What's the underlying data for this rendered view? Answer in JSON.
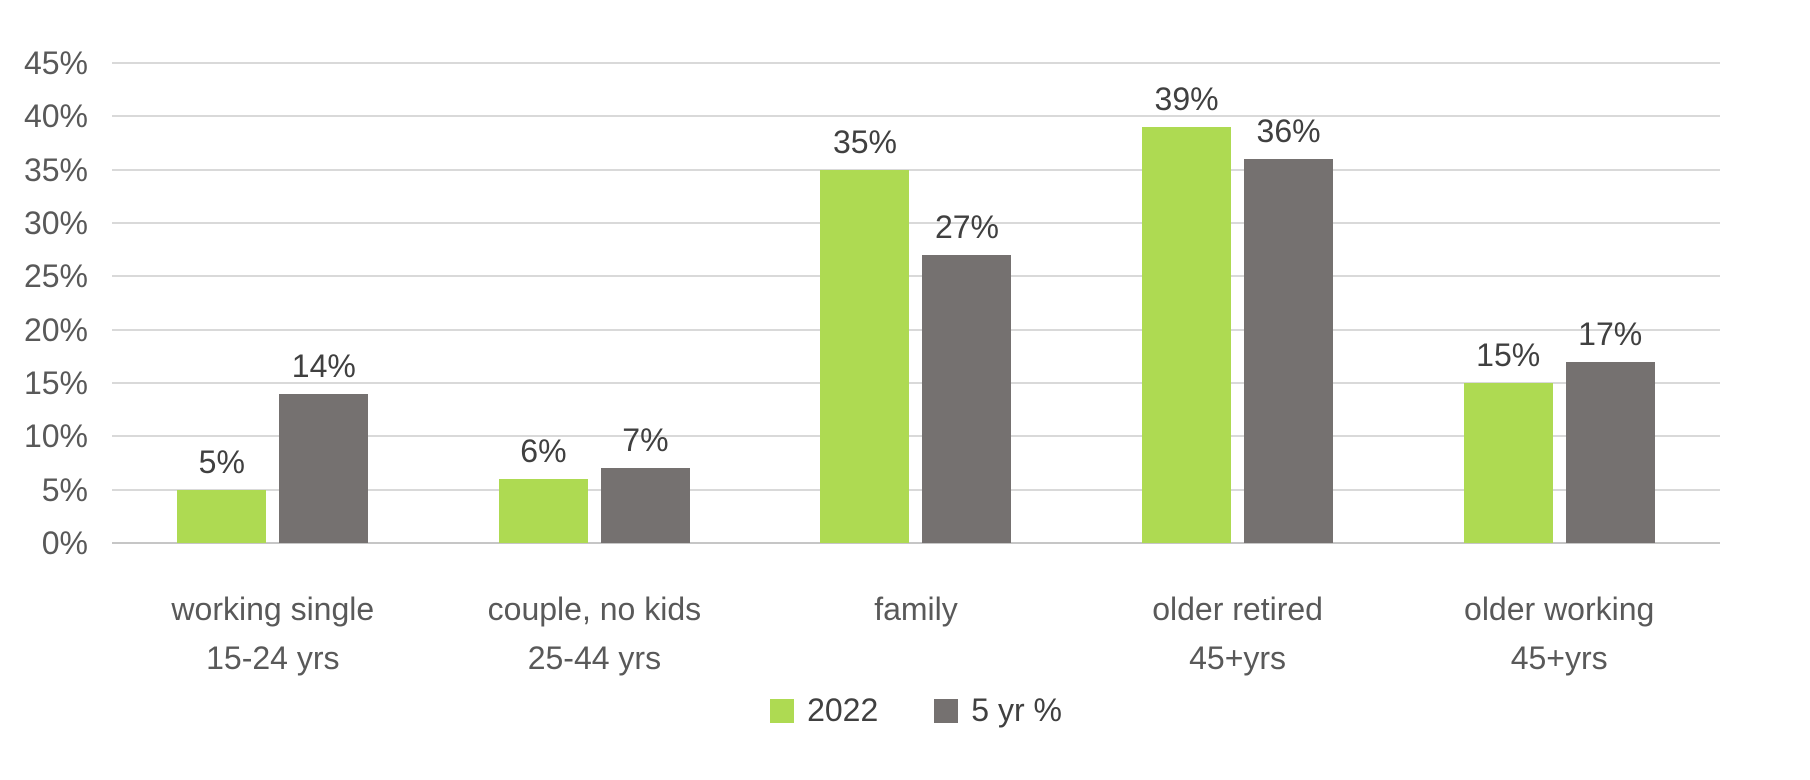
{
  "chart_data": {
    "type": "bar",
    "categories": [
      [
        "working single",
        "15-24 yrs"
      ],
      [
        "couple, no kids",
        "25-44 yrs"
      ],
      [
        "family"
      ],
      [
        "older retired",
        "45+yrs"
      ],
      [
        "older working",
        "45+yrs"
      ]
    ],
    "series": [
      {
        "name": "2022",
        "color": "#aeda52",
        "values": [
          5,
          6,
          35,
          39,
          15
        ],
        "labels": [
          "5%",
          "6%",
          "35%",
          "39%",
          "15%"
        ]
      },
      {
        "name": "5 yr %",
        "color": "#757170",
        "values": [
          14,
          7,
          27,
          36,
          17
        ],
        "labels": [
          "14%",
          "7%",
          "27%",
          "36%",
          "17%"
        ]
      }
    ],
    "title": "",
    "xlabel": "",
    "ylabel": "",
    "ylim": [
      0,
      45
    ],
    "yticks": [
      "45%",
      "40%",
      "35%",
      "30%",
      "25%",
      "20%",
      "15%",
      "10%",
      "5%",
      "0%"
    ],
    "grid": "horizontal",
    "gridline_color": "#d9d9d9",
    "axis_line_color": "#c6c6c6",
    "tick_text_color": "#595959",
    "data_label_color": "#404040",
    "legend_position": "bottom",
    "legend": [
      "2022",
      "5 yr %"
    ]
  }
}
